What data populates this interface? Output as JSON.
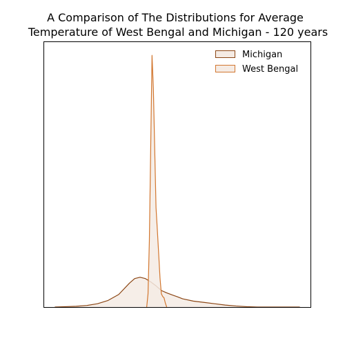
{
  "chart_data": {
    "type": "area",
    "subtype": "kde-density",
    "title_lines": [
      "A Comparison of The Distributions for Average",
      "Temperature of West Bengal and Michigan - 120 years"
    ],
    "xlabel": "",
    "ylabel": "",
    "xaxis_ticks_visible": false,
    "yaxis_ticks_visible": false,
    "xlim": [
      -40,
      60
    ],
    "ylim": [
      0,
      0.2
    ],
    "grid": false,
    "legend_position": "top-right",
    "series": [
      {
        "name": "Michigan",
        "stroke": "#8b4513",
        "fill": "#f5ebe4",
        "x": [
          -36,
          -32,
          -28,
          -24,
          -20,
          -16,
          -12,
          -8,
          -6,
          -4,
          -2,
          0,
          2,
          4,
          6,
          8,
          10,
          12,
          16,
          20,
          24,
          28,
          32,
          36,
          40,
          44,
          48,
          52,
          56
        ],
        "y": [
          0,
          0.0003,
          0.0006,
          0.0012,
          0.0025,
          0.005,
          0.0095,
          0.018,
          0.0215,
          0.0225,
          0.0215,
          0.019,
          0.016,
          0.0125,
          0.0107,
          0.0092,
          0.0078,
          0.0062,
          0.0045,
          0.0035,
          0.0025,
          0.0015,
          0.0008,
          0.0003,
          0,
          0,
          0,
          0,
          0
        ]
      },
      {
        "name": "West Bengal",
        "stroke": "#d2762e",
        "fill": "#f5ebe4",
        "x": [
          -1.5,
          -1,
          -0.5,
          0,
          0.5,
          1,
          1.5,
          2,
          2.5,
          3,
          3.5,
          4,
          4.5,
          5,
          5.5,
          6
        ],
        "y": [
          0,
          0.01,
          0.05,
          0.12,
          0.19,
          0.165,
          0.12,
          0.075,
          0.058,
          0.04,
          0.022,
          0.01,
          0.008,
          0.007,
          0.003,
          0
        ]
      }
    ]
  }
}
